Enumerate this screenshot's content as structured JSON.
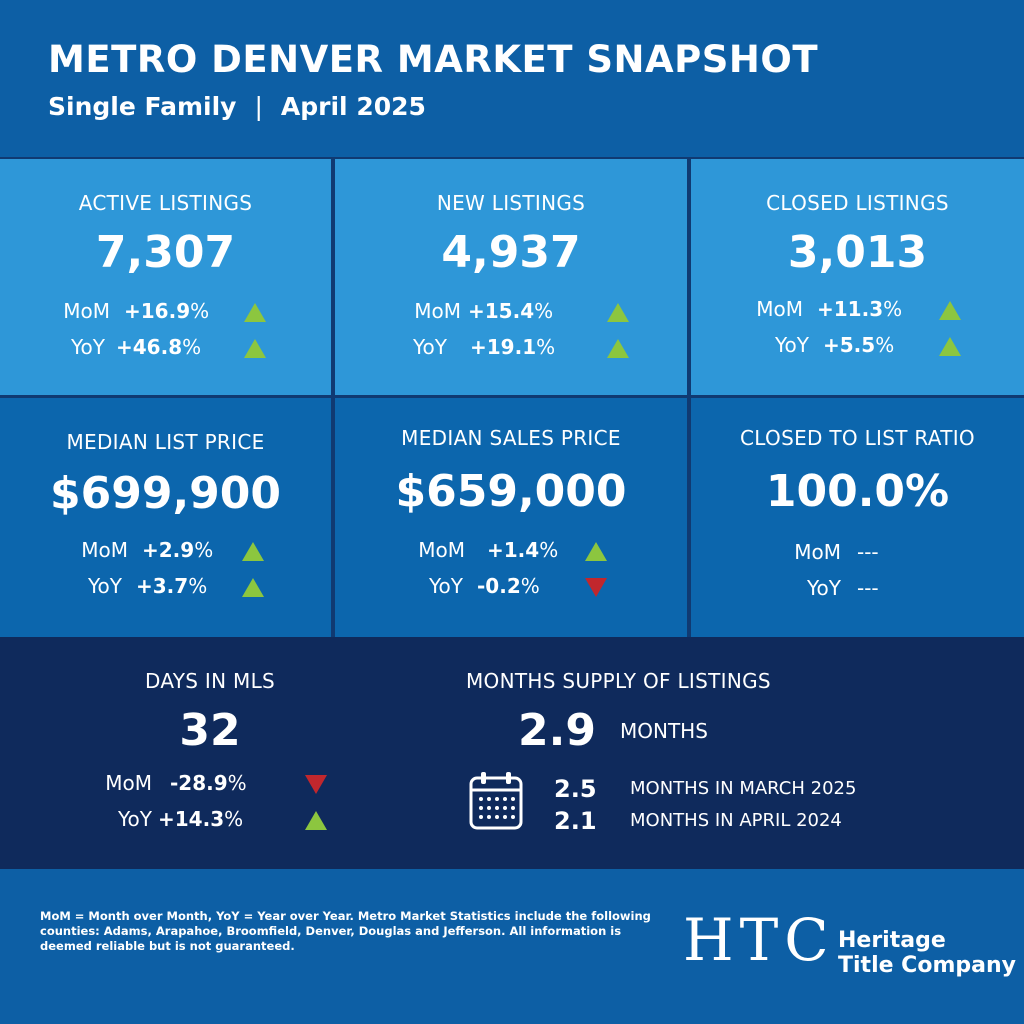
{
  "header": {
    "title": "METRO DENVER MARKET SNAPSHOT",
    "subtitle_type": "Single Family",
    "subtitle_separator": "|",
    "subtitle_date": "April 2025"
  },
  "colors": {
    "header_bg": "#0d5fa5",
    "top_row_bg": "#2e97d8",
    "mid_row_bg": "#0c66ad",
    "bottom_bg": "#0f2a5c",
    "up_arrow": "#8cc63f",
    "down_arrow": "#c1272d"
  },
  "active_listings": {
    "label": "ACTIVE LISTINGS",
    "value": "7,307",
    "mom_label": "MoM",
    "mom_value": "+16.9",
    "mom_pct": "%",
    "mom_trend": "up",
    "yoy_label": "YoY",
    "yoy_value": "+46.8",
    "yoy_pct": "%",
    "yoy_trend": "up"
  },
  "new_listings": {
    "label": "NEW LISTINGS",
    "value": "4,937",
    "mom_label": "MoM",
    "mom_value": "+15.4",
    "mom_pct": "%",
    "mom_trend": "up",
    "yoy_label": "YoY",
    "yoy_value": "+19.1",
    "yoy_pct": "%",
    "yoy_trend": "up"
  },
  "closed_listings": {
    "label": "CLOSED LISTINGS",
    "value": "3,013",
    "mom_label": "MoM",
    "mom_value": "+11.3",
    "mom_pct": "%",
    "mom_trend": "up",
    "yoy_label": "YoY",
    "yoy_value": "+5.5",
    "yoy_pct": "%",
    "yoy_trend": "up"
  },
  "median_list_price": {
    "label": "MEDIAN LIST PRICE",
    "value": "$699,900",
    "mom_label": "MoM",
    "mom_value": "+2.9",
    "mom_pct": "%",
    "mom_trend": "up",
    "yoy_label": "YoY",
    "yoy_value": "+3.7",
    "yoy_pct": "%",
    "yoy_trend": "up"
  },
  "median_sales_price": {
    "label": "MEDIAN SALES PRICE",
    "value": "$659,000",
    "mom_label": "MoM",
    "mom_value": "+1.4",
    "mom_pct": "%",
    "mom_trend": "up",
    "yoy_label": "YoY",
    "yoy_value": "-0.2",
    "yoy_pct": "%",
    "yoy_trend": "down"
  },
  "closed_to_list_ratio": {
    "label": "CLOSED TO LIST RATIO",
    "value": "100.0%",
    "mom_label": "MoM",
    "mom_value": "---",
    "yoy_label": "YoY",
    "yoy_value": "---"
  },
  "days_in_mls": {
    "label": "DAYS IN MLS",
    "value": "32",
    "mom_label": "MoM",
    "mom_value": "-28.9",
    "mom_pct": "%",
    "mom_trend": "down",
    "yoy_label": "YoY",
    "yoy_value": "+14.3",
    "yoy_pct": "%",
    "yoy_trend": "up"
  },
  "months_supply": {
    "label": "MONTHS SUPPLY OF LISTINGS",
    "value": "2.9",
    "unit": "MONTHS",
    "icon": "calendar-icon",
    "prior": [
      {
        "value": "2.5",
        "label": "MONTHS IN MARCH 2025"
      },
      {
        "value": "2.1",
        "label": "MONTHS IN APRIL 2024"
      }
    ]
  },
  "footer": {
    "note": "MoM = Month over Month, YoY = Year over Year. Metro Market Statistics include the following counties: Adams, Arapahoe, Broomfield, Denver, Douglas and Jefferson. All information is deemed reliable but is not guaranteed.",
    "logo_letters": "HTC",
    "company_line1": "Heritage",
    "company_line2": "Title Company"
  }
}
